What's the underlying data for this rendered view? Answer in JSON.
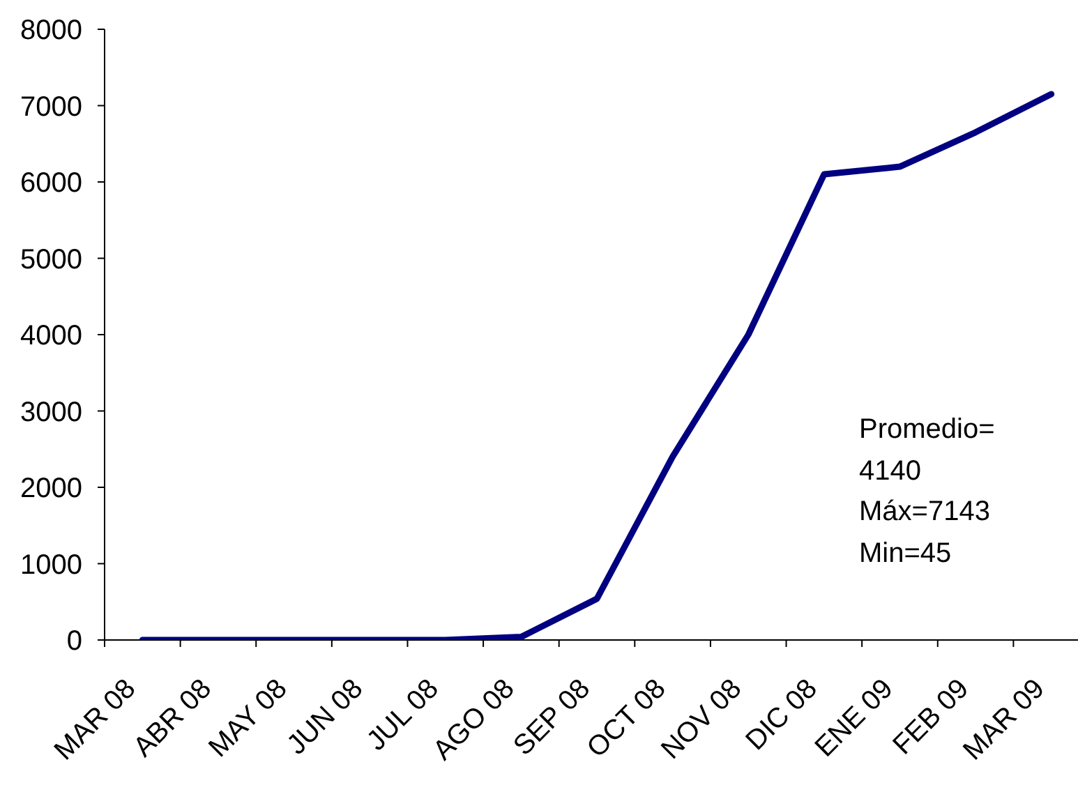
{
  "chart_data": {
    "type": "line",
    "categories": [
      "MAR 08",
      "ABR 08",
      "MAY 08",
      "JUN 08",
      "JUL 08",
      "AGO 08",
      "SEP 08",
      "OCT 08",
      "NOV 08",
      "DIC 08",
      "ENE 09",
      "FEB 09",
      "MAR 09"
    ],
    "values": [
      0,
      0,
      0,
      0,
      0,
      40,
      540,
      2400,
      4000,
      6100,
      6200,
      6650,
      7150
    ],
    "color": "#000080",
    "ylim": [
      0,
      8000
    ],
    "yticks": [
      0,
      1000,
      2000,
      3000,
      4000,
      5000,
      6000,
      7000,
      8000
    ],
    "annotations": [
      "Promedio= 4140",
      "Máx=7143",
      "Min=45"
    ]
  }
}
